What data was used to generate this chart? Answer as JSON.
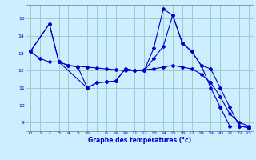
{
  "title": "Graphe des températures (°c)",
  "background_color": "#cceeff",
  "grid_color": "#99cccc",
  "line_color": "#0000cc",
  "xlim": [
    -0.5,
    23.5
  ],
  "ylim": [
    8.5,
    15.8
  ],
  "yticks": [
    9,
    10,
    11,
    12,
    13,
    14,
    15
  ],
  "xticks": [
    0,
    1,
    2,
    3,
    4,
    5,
    6,
    7,
    8,
    9,
    10,
    11,
    12,
    13,
    14,
    15,
    16,
    17,
    18,
    19,
    20,
    21,
    22,
    23
  ],
  "line1_x": [
    0,
    1,
    2,
    3,
    4,
    5,
    6,
    7,
    8,
    9,
    10,
    11,
    12,
    13,
    14,
    15,
    16,
    17,
    18,
    19,
    20,
    21,
    22,
    23
  ],
  "line1_y": [
    13.1,
    12.7,
    12.5,
    12.5,
    12.3,
    12.25,
    12.2,
    12.15,
    12.1,
    12.05,
    12.0,
    12.0,
    12.05,
    12.1,
    12.2,
    12.3,
    12.2,
    12.1,
    11.8,
    11.3,
    10.5,
    9.5,
    9.0,
    8.8
  ],
  "line2_x": [
    0,
    2,
    3,
    4,
    5,
    6,
    7,
    8,
    9,
    10,
    11,
    12,
    13,
    14,
    15,
    16,
    17,
    18,
    19,
    20,
    21,
    22,
    23
  ],
  "line2_y": [
    13.1,
    14.7,
    12.5,
    12.3,
    12.2,
    11.0,
    11.3,
    11.35,
    11.4,
    12.1,
    12.0,
    12.0,
    12.7,
    13.4,
    15.2,
    13.6,
    13.1,
    12.3,
    11.0,
    9.9,
    8.8,
    8.8,
    8.7
  ],
  "line3_x": [
    0,
    2,
    3,
    6,
    7,
    8,
    9,
    10,
    11,
    12,
    13,
    14,
    15,
    16,
    17,
    18,
    19,
    20,
    21,
    22,
    23
  ],
  "line3_y": [
    13.1,
    14.7,
    12.5,
    11.0,
    11.3,
    11.35,
    11.4,
    12.1,
    12.0,
    12.0,
    13.3,
    15.55,
    15.2,
    13.6,
    13.1,
    12.3,
    12.1,
    11.0,
    9.9,
    8.8,
    8.7
  ]
}
